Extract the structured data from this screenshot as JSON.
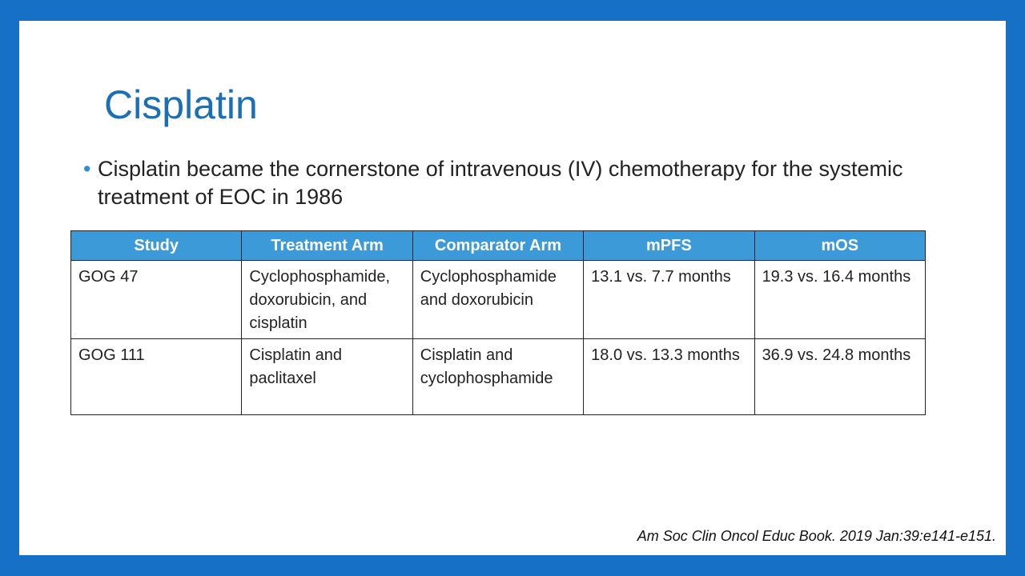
{
  "slide": {
    "title": "Cisplatin",
    "bullet": "Cisplatin became the cornerstone of intravenous (IV) chemotherapy for the systemic treatment of EOC in 1986",
    "table": {
      "header": [
        "Study",
        "Treatment Arm",
        "Comparator Arm",
        "mPFS",
        "mOS"
      ],
      "rows": [
        [
          "GOG 47",
          "Cyclophosphamide, doxorubicin, and cisplatin",
          "Cyclophosphamide and doxorubicin",
          "13.1 vs. 7.7 months",
          "19.3 vs. 16.4 months"
        ],
        [
          "GOG 111",
          "Cisplatin and paclitaxel",
          "Cisplatin and cyclophosphamide",
          "18.0 vs. 13.3 months",
          "36.9 vs. 24.8 months"
        ]
      ]
    },
    "citation": "Am Soc Clin Oncol Educ Book. 2019 Jan:39:e141-e151."
  }
}
